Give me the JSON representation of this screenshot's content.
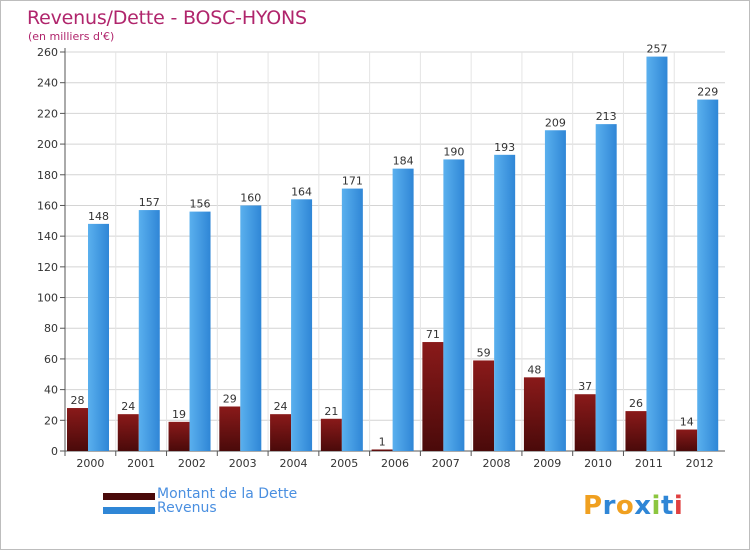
{
  "title": "Revenus/Dette - BOSC-HYONS",
  "subtitle": "(en milliers d'€)",
  "colors": {
    "debt_top": "#8a1a1a",
    "debt_bottom": "#4a0a0a",
    "revenue_top": "#5ab0ee",
    "revenue_bottom": "#2f86d6",
    "title": "#b0256c",
    "legend_text": "#4a8fe0"
  },
  "legend": {
    "debt": "Montant de la Dette",
    "revenue": "Revenus"
  },
  "logo": {
    "text": "Proxiti",
    "letters": [
      "P",
      "r",
      "o",
      "x",
      "i",
      "t",
      "i"
    ],
    "colors": [
      "#f0a020",
      "#2f86d6",
      "#f0a020",
      "#2f86d6",
      "#8cc63f",
      "#2f86d6",
      "#e04040"
    ]
  },
  "chart_data": {
    "type": "bar",
    "categories": [
      "2000",
      "2001",
      "2002",
      "2003",
      "2004",
      "2005",
      "2006",
      "2007",
      "2008",
      "2009",
      "2010",
      "2011",
      "2012"
    ],
    "series": [
      {
        "name": "Montant de la Dette",
        "values": [
          28,
          24,
          19,
          29,
          24,
          21,
          1,
          71,
          59,
          48,
          37,
          26,
          14
        ]
      },
      {
        "name": "Revenus",
        "values": [
          148,
          157,
          156,
          160,
          164,
          171,
          184,
          190,
          193,
          209,
          213,
          257,
          229
        ]
      }
    ],
    "yticks": [
      0,
      20,
      40,
      60,
      80,
      100,
      120,
      140,
      160,
      180,
      200,
      220,
      240,
      260
    ],
    "ylim": [
      0,
      260
    ],
    "grid": true,
    "legend_position": "bottom-left"
  }
}
